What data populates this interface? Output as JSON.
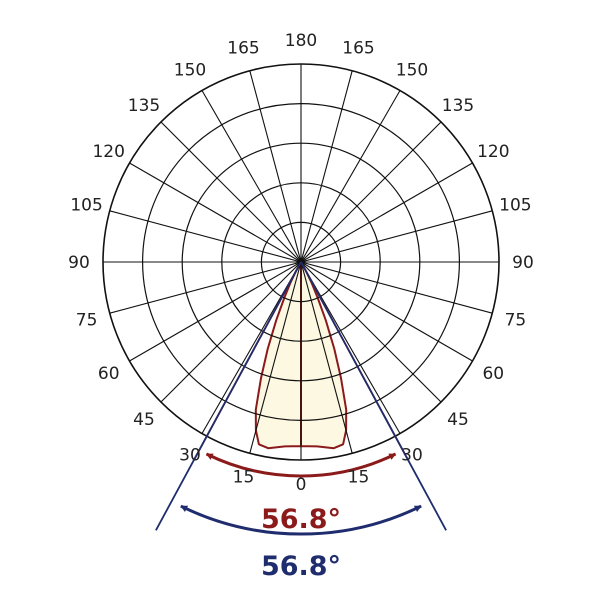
{
  "chart_data": {
    "type": "polar",
    "angle_ticks_left": [
      "0",
      "15",
      "30",
      "45",
      "60",
      "75",
      "90",
      "105",
      "120",
      "135",
      "150",
      "165",
      "180"
    ],
    "angle_ticks_right": [
      "15",
      "30",
      "45",
      "60",
      "75",
      "90",
      "105",
      "120",
      "135",
      "150",
      "165"
    ],
    "grid": true,
    "radial_rings": 5,
    "spoke_step_deg": 15,
    "series": [
      {
        "color": "#8b1a1a",
        "fill": "#fdf8e1",
        "points": [
          {
            "angle": 0,
            "r": 0.93
          },
          {
            "angle": 5,
            "r": 0.935
          },
          {
            "angle": 10,
            "r": 0.955
          },
          {
            "angle": 13,
            "r": 0.945
          },
          {
            "angle": 15,
            "r": 0.88
          },
          {
            "angle": 17,
            "r": 0.78
          },
          {
            "angle": 19,
            "r": 0.62
          },
          {
            "angle": 21,
            "r": 0.47
          },
          {
            "angle": 23,
            "r": 0.32
          },
          {
            "angle": 25,
            "r": 0.2
          },
          {
            "angle": 27,
            "r": 0.12
          },
          {
            "angle": 29,
            "r": 0.05
          },
          {
            "angle": 30,
            "r": 0.0
          }
        ]
      }
    ],
    "beam_angles": [
      {
        "label": "56.8°",
        "color": "#8b1a1a",
        "half_angle": 28.4
      },
      {
        "label": "56.8°",
        "color": "#1f2d6e",
        "half_angle": 28.4
      }
    ]
  }
}
